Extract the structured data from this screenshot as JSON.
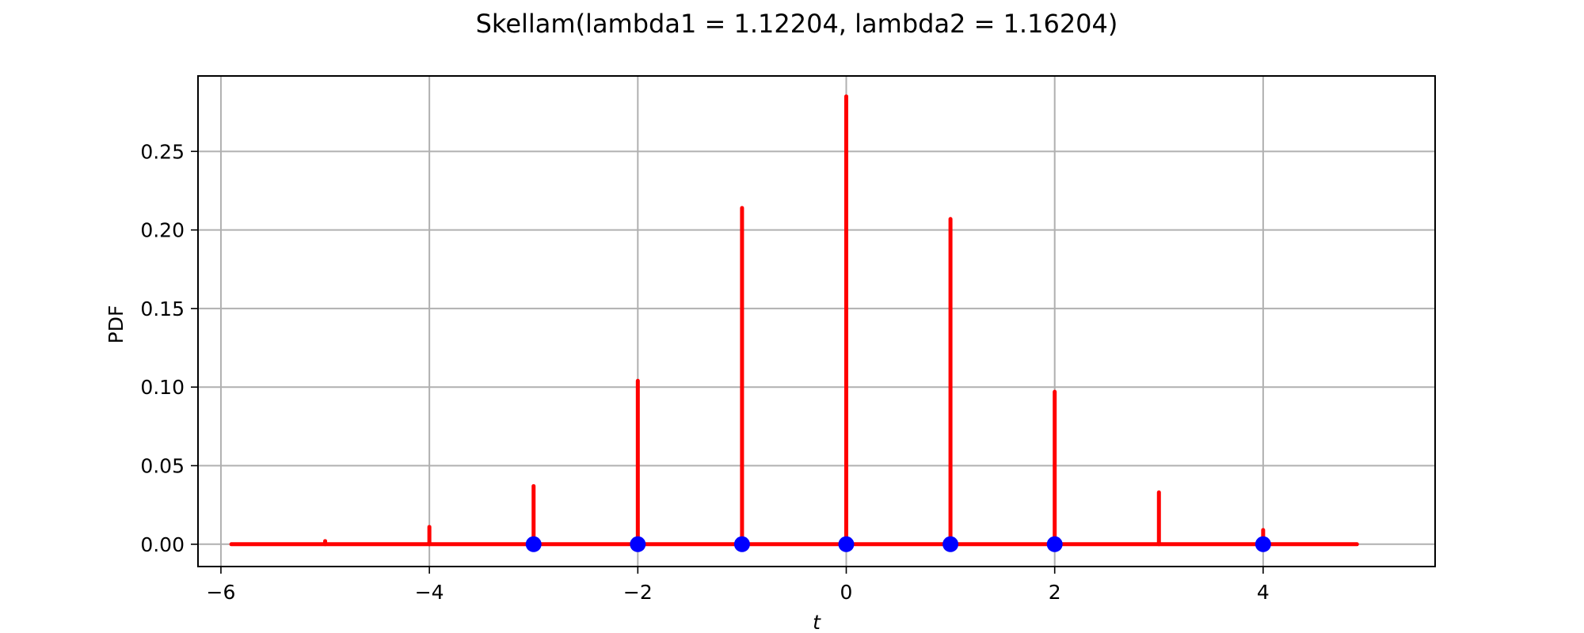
{
  "chart_data": {
    "type": "stem",
    "title": "Skellam(lambda1 = 1.12204, lambda2 = 1.16204)",
    "xlabel": "t",
    "ylabel": "PDF",
    "xlim": [
      -6.22,
      5.65
    ],
    "ylim": [
      -0.0142,
      0.298
    ],
    "x_ticks": [
      -6,
      -4,
      -2,
      0,
      2,
      4
    ],
    "x_tick_labels": [
      "−6",
      "−4",
      "−2",
      "0",
      "2",
      "4"
    ],
    "y_ticks": [
      0.0,
      0.05,
      0.1,
      0.15,
      0.2,
      0.25
    ],
    "y_tick_labels": [
      "0.00",
      "0.05",
      "0.10",
      "0.15",
      "0.20",
      "0.25"
    ],
    "grid": true,
    "baseline": {
      "from": -5.9,
      "to": 4.9,
      "y": 0,
      "color": "#ff0000"
    },
    "stems": {
      "color": "#ff0000",
      "x": [
        -5,
        -4,
        -3,
        -2,
        -1,
        0,
        1,
        2,
        3,
        4
      ],
      "y": [
        0.002,
        0.011,
        0.037,
        0.104,
        0.214,
        0.285,
        0.207,
        0.097,
        0.033,
        0.009
      ]
    },
    "markers": {
      "color": "#0000ff",
      "x": [
        -3,
        -2,
        -1,
        0,
        1,
        2,
        4
      ],
      "y": [
        0,
        0,
        0,
        0,
        0,
        0,
        0
      ]
    }
  }
}
